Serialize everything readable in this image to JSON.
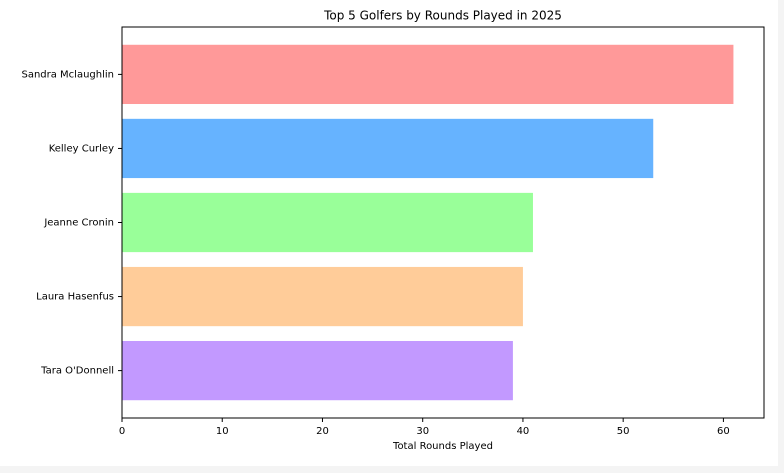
{
  "chart_data": {
    "type": "barh",
    "title": "Top 5 Golfers by Rounds Played in 2025",
    "x_label": "Total Rounds Played",
    "categories": [
      "Sandra Mclaughlin",
      "Kelley Curley",
      "Jeanne Cronin",
      "Laura Hasenfus",
      "Tara O'Donnell"
    ],
    "values": [
      61,
      53,
      41,
      40,
      39
    ],
    "colors": [
      "#ff9999",
      "#66b3ff",
      "#99ff99",
      "#ffcc99",
      "#c299ff"
    ],
    "xlim": [
      0,
      64.05
    ],
    "xticks": [
      0,
      10,
      20,
      30,
      40,
      50,
      60
    ],
    "grid": false
  }
}
